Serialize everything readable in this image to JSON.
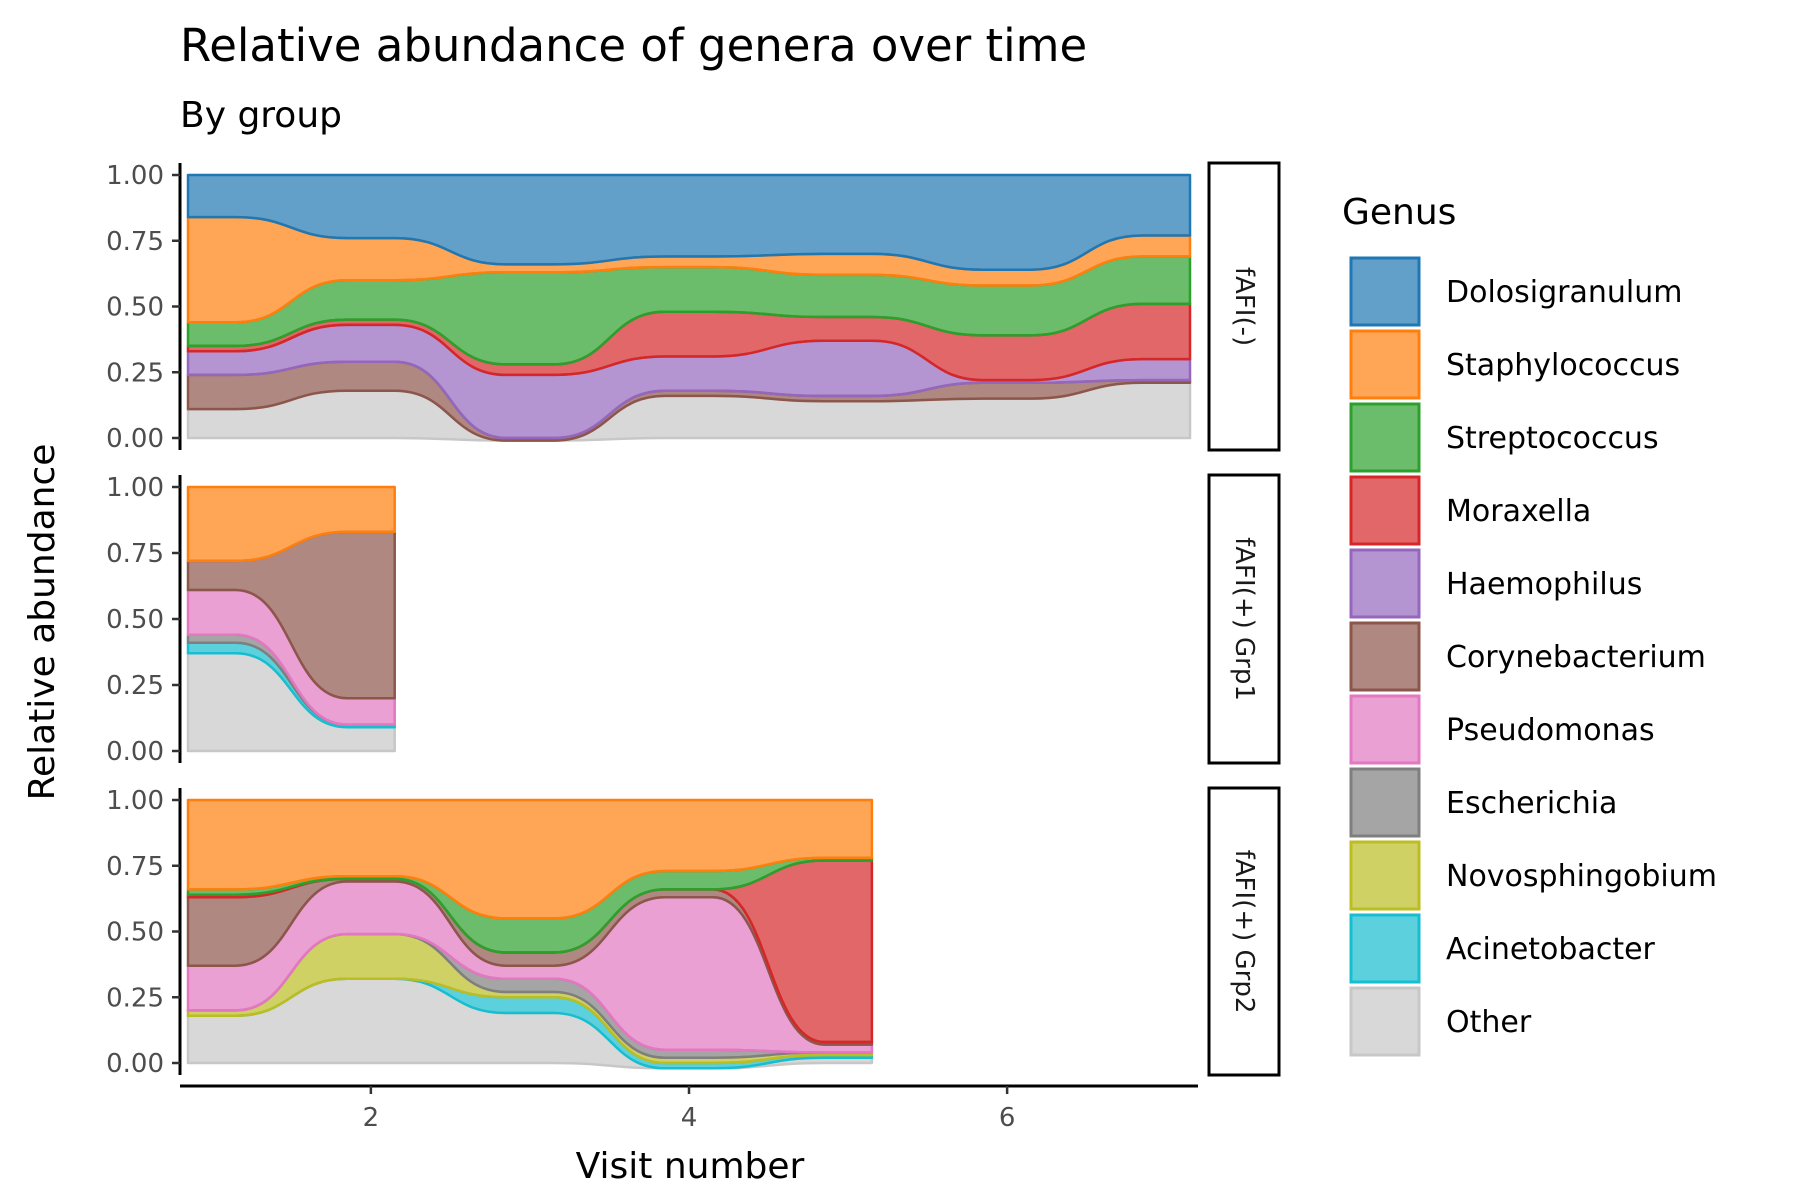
{
  "chart_data": {
    "type": "area",
    "title": "Relative abundance of genera over time",
    "subtitle": "By group",
    "xlabel": "Visit number",
    "ylabel": "Relative abundance",
    "xlim": [
      0.8,
      7.2
    ],
    "ylim": [
      0,
      1
    ],
    "x_ticks": [
      2,
      4,
      6
    ],
    "y_ticks": [
      0,
      0.25,
      0.5,
      0.75,
      1.0
    ],
    "y_tick_labels": [
      "0.00",
      "0.25",
      "0.50",
      "0.75",
      "1.00"
    ],
    "grid": false,
    "legend_position": "right",
    "legend_title": "Genus",
    "genera": [
      "Dolosigranulum",
      "Staphylococcus",
      "Streptococcus",
      "Moraxella",
      "Haemophilus",
      "Corynebacterium",
      "Pseudomonas",
      "Escherichia",
      "Novosphingobium",
      "Acinetobacter",
      "Other"
    ],
    "colors": {
      "Dolosigranulum": "#1f77b4",
      "Staphylococcus": "#ff7f0e",
      "Streptococcus": "#2ca02c",
      "Moraxella": "#d62728",
      "Haemophilus": "#9467bd",
      "Corynebacterium": "#8c564b",
      "Pseudomonas": "#e377c2",
      "Escherichia": "#7f7f7f",
      "Novosphingobium": "#bcbd22",
      "Acinetobacter": "#17becf",
      "Other": "#c7c7c7"
    },
    "panels": [
      {
        "label": "fAFI(-)",
        "x": [
          1,
          2,
          3,
          4,
          5,
          6,
          7
        ],
        "series": [
          {
            "name": "Dolosigranulum",
            "values": [
              0.16,
              0.24,
              0.34,
              0.31,
              0.3,
              0.36,
              0.23
            ]
          },
          {
            "name": "Staphylococcus",
            "values": [
              0.4,
              0.16,
              0.03,
              0.04,
              0.08,
              0.06,
              0.08
            ]
          },
          {
            "name": "Streptococcus",
            "values": [
              0.09,
              0.15,
              0.35,
              0.17,
              0.16,
              0.19,
              0.18
            ]
          },
          {
            "name": "Moraxella",
            "values": [
              0.02,
              0.02,
              0.04,
              0.17,
              0.09,
              0.17,
              0.21
            ]
          },
          {
            "name": "Haemophilus",
            "values": [
              0.09,
              0.14,
              0.24,
              0.13,
              0.21,
              0.01,
              0.08
            ]
          },
          {
            "name": "Corynebacterium",
            "values": [
              0.13,
              0.11,
              0.01,
              0.02,
              0.02,
              0.06,
              0.01
            ]
          },
          {
            "name": "Pseudomonas",
            "values": [
              0.0,
              0.0,
              0.0,
              0.0,
              0.0,
              0.0,
              0.0
            ]
          },
          {
            "name": "Escherichia",
            "values": [
              0.0,
              0.0,
              0.0,
              0.0,
              0.0,
              0.0,
              0.0
            ]
          },
          {
            "name": "Novosphingobium",
            "values": [
              0.0,
              0.0,
              0.0,
              0.0,
              0.0,
              0.0,
              0.0
            ]
          },
          {
            "name": "Acinetobacter",
            "values": [
              0.0,
              0.0,
              0.0,
              0.0,
              0.0,
              0.0,
              0.0
            ]
          },
          {
            "name": "Other",
            "values": [
              0.11,
              0.18,
              0.0,
              0.16,
              0.14,
              0.15,
              0.21
            ]
          }
        ]
      },
      {
        "label": "fAFI(+) Grp1",
        "x": [
          1,
          2
        ],
        "series": [
          {
            "name": "Dolosigranulum",
            "values": [
              0.0,
              0.0
            ]
          },
          {
            "name": "Staphylococcus",
            "values": [
              0.28,
              0.17
            ]
          },
          {
            "name": "Streptococcus",
            "values": [
              0.0,
              0.0
            ]
          },
          {
            "name": "Moraxella",
            "values": [
              0.0,
              0.0
            ]
          },
          {
            "name": "Haemophilus",
            "values": [
              0.0,
              0.0
            ]
          },
          {
            "name": "Corynebacterium",
            "values": [
              0.11,
              0.63
            ]
          },
          {
            "name": "Pseudomonas",
            "values": [
              0.17,
              0.1
            ]
          },
          {
            "name": "Escherichia",
            "values": [
              0.03,
              0.0
            ]
          },
          {
            "name": "Novosphingobium",
            "values": [
              0.0,
              0.0
            ]
          },
          {
            "name": "Acinetobacter",
            "values": [
              0.04,
              0.01
            ]
          },
          {
            "name": "Other",
            "values": [
              0.37,
              0.09
            ]
          }
        ]
      },
      {
        "label": "fAFI(+) Grp2",
        "x": [
          1,
          2,
          3,
          4,
          5
        ],
        "series": [
          {
            "name": "Dolosigranulum",
            "values": [
              0.0,
              0.0,
              0.0,
              0.0,
              0.0
            ]
          },
          {
            "name": "Staphylococcus",
            "values": [
              0.34,
              0.29,
              0.45,
              0.27,
              0.22
            ]
          },
          {
            "name": "Streptococcus",
            "values": [
              0.02,
              0.01,
              0.13,
              0.07,
              0.01
            ]
          },
          {
            "name": "Moraxella",
            "values": [
              0.01,
              0.0,
              0.0,
              0.0,
              0.69
            ]
          },
          {
            "name": "Haemophilus",
            "values": [
              0.0,
              0.0,
              0.0,
              0.0,
              0.0
            ]
          },
          {
            "name": "Corynebacterium",
            "values": [
              0.26,
              0.01,
              0.05,
              0.03,
              0.01
            ]
          },
          {
            "name": "Pseudomonas",
            "values": [
              0.17,
              0.2,
              0.05,
              0.58,
              0.03
            ]
          },
          {
            "name": "Escherichia",
            "values": [
              0.0,
              0.0,
              0.05,
              0.03,
              0.0
            ]
          },
          {
            "name": "Novosphingobium",
            "values": [
              0.02,
              0.17,
              0.02,
              0.02,
              0.01
            ]
          },
          {
            "name": "Acinetobacter",
            "values": [
              0.0,
              0.0,
              0.06,
              0.02,
              0.01
            ]
          },
          {
            "name": "Other",
            "values": [
              0.18,
              0.32,
              0.19,
              0.0,
              0.02
            ]
          }
        ]
      }
    ]
  }
}
